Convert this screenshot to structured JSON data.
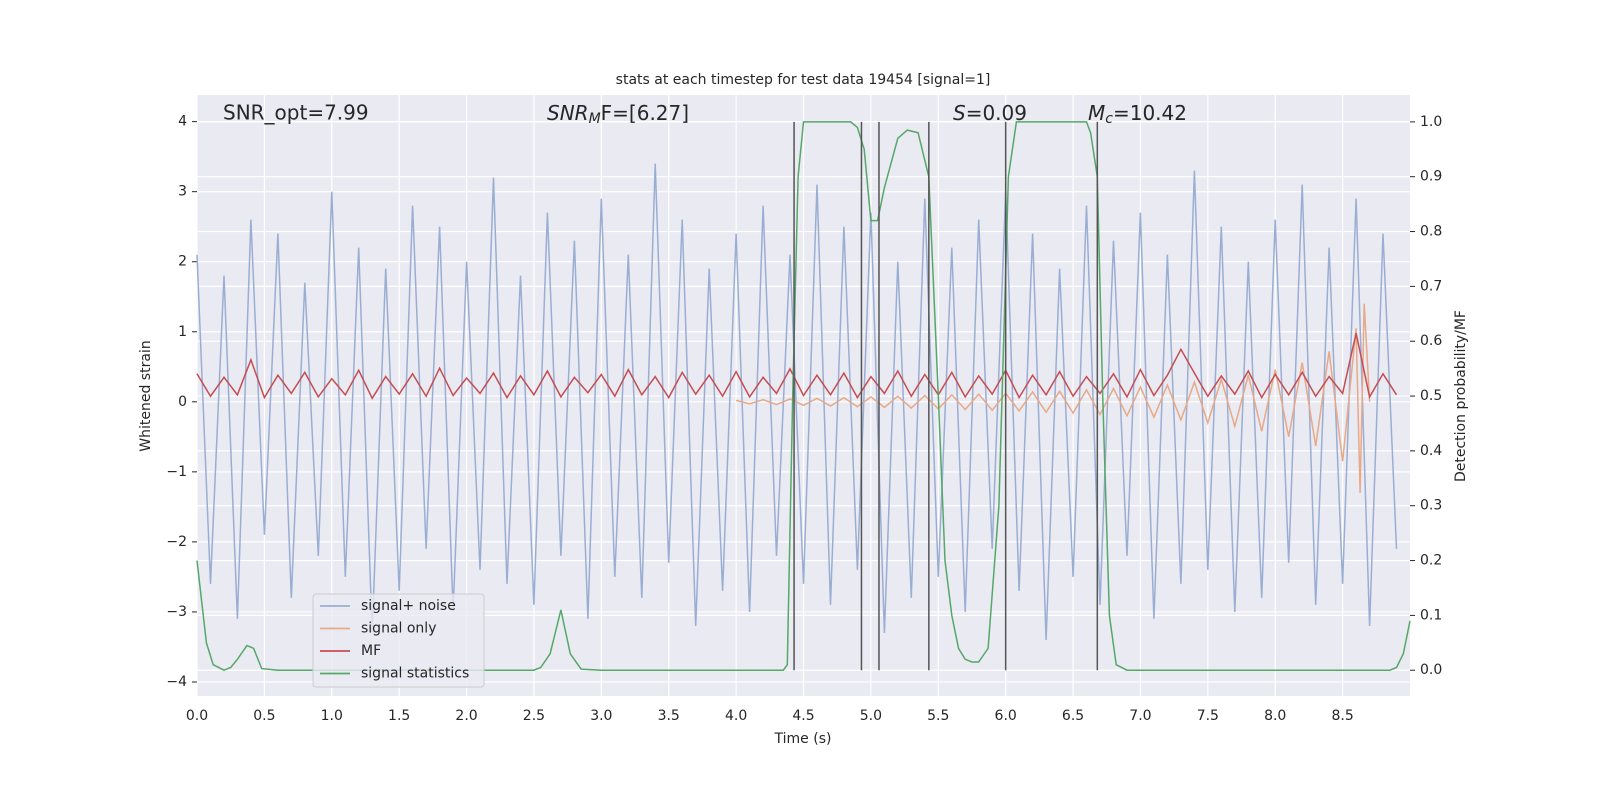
{
  "chart_data": {
    "type": "line",
    "title": "stats at each timestep for test data 19454 [signal=1]",
    "x_label": "Time (s)",
    "y_label": "Whitened strain",
    "y2_label": "Detection probability/MF",
    "xlim": [
      0,
      9.0
    ],
    "ylim": [
      -4.2,
      4.38
    ],
    "y2lim": [
      -0.047,
      1.049
    ],
    "xticks": [
      {
        "value": 0,
        "label": "0.0"
      },
      0.5,
      {
        "value": 1,
        "label": "1.0"
      },
      1.5,
      {
        "value": 2,
        "label": "2.0"
      },
      2.5,
      {
        "value": 3,
        "label": "3.0"
      },
      3.5,
      {
        "value": 4,
        "label": "4.0"
      },
      4.5,
      {
        "value": 5,
        "label": "5.0"
      },
      5.5,
      {
        "value": 6,
        "label": "6.0"
      },
      6.5,
      {
        "value": 7,
        "label": "7.0"
      },
      7.5,
      {
        "value": 8,
        "label": "8.0"
      },
      8.5
    ],
    "yticks": [
      {
        "value": -4,
        "label": "−4"
      },
      {
        "value": -3,
        "label": "−3"
      },
      {
        "value": -2,
        "label": "−2"
      },
      {
        "value": -1,
        "label": "−1"
      },
      0,
      1,
      2,
      3,
      4
    ],
    "y2ticks": [
      {
        "value": 0,
        "label": "0.0"
      },
      0.1,
      0.2,
      0.3,
      0.4,
      0.5,
      0.6,
      0.7,
      0.8,
      0.9,
      {
        "value": 1,
        "label": "1.0"
      }
    ],
    "grid": true,
    "legend_loc": "lower left",
    "annotations": [
      {
        "text": "SNR_opt=7.99"
      },
      {
        "base": "SNR",
        "sub": "M",
        "tail": "F=[6.27]"
      },
      {
        "base": "S",
        "tail": "=0.09"
      },
      {
        "base": "M",
        "sub": "c",
        "tail": "=10.42"
      }
    ],
    "series": [
      {
        "name": "signal+ noise",
        "color": "#9aaed3",
        "axis": "y",
        "x": [
          0,
          0.1,
          0.2,
          0.3,
          0.4,
          0.5,
          0.6,
          0.7,
          0.8,
          0.9,
          1,
          1.1,
          1.2,
          1.3,
          1.4,
          1.5,
          1.6,
          1.7,
          1.8,
          1.9,
          2,
          2.1,
          2.2,
          2.3,
          2.4,
          2.5,
          2.6,
          2.7,
          2.8,
          2.9,
          3,
          3.1,
          3.2,
          3.3,
          3.4,
          3.5,
          3.6,
          3.7,
          3.8,
          3.9,
          4,
          4.1,
          4.2,
          4.3,
          4.4,
          4.5,
          4.6,
          4.7,
          4.8,
          4.9,
          5,
          5.1,
          5.2,
          5.3,
          5.4,
          5.5,
          5.6,
          5.7,
          5.8,
          5.9,
          6,
          6.1,
          6.2,
          6.3,
          6.4,
          6.5,
          6.6,
          6.7,
          6.8,
          6.9,
          7,
          7.1,
          7.2,
          7.3,
          7.4,
          7.5,
          7.6,
          7.7,
          7.8,
          7.9,
          8,
          8.1,
          8.2,
          8.3,
          8.4,
          8.5,
          8.6,
          8.7,
          8.8,
          8.9
        ],
        "values": [
          2.1,
          -2.6,
          1.8,
          -3.1,
          2.6,
          -1.9,
          2.4,
          -2.8,
          1.7,
          -2.2,
          3.0,
          -2.5,
          2.2,
          -3.3,
          1.9,
          -2.7,
          2.8,
          -2.1,
          2.5,
          -3.0,
          2.0,
          -2.4,
          3.2,
          -2.6,
          1.8,
          -2.9,
          2.7,
          -2.2,
          2.3,
          -3.1,
          2.9,
          -2.5,
          2.1,
          -2.8,
          3.4,
          -2.3,
          2.6,
          -3.2,
          1.9,
          -2.7,
          2.4,
          -3.0,
          2.8,
          -2.2,
          2.1,
          -2.6,
          3.1,
          -2.9,
          2.5,
          -2.4,
          2.7,
          -3.3,
          2.0,
          -2.8,
          2.9,
          -2.5,
          2.2,
          -3.0,
          2.6,
          -2.1,
          3.0,
          -2.7,
          2.4,
          -3.4,
          1.9,
          -2.5,
          2.8,
          -2.9,
          2.3,
          -2.2,
          2.7,
          -3.1,
          2.1,
          -2.6,
          3.3,
          -2.4,
          2.5,
          -3.0,
          2.0,
          -2.8,
          2.6,
          -2.3,
          3.1,
          -2.9,
          2.2,
          -2.6,
          2.9,
          -3.2,
          2.4,
          -2.1
        ]
      },
      {
        "name": "signal only",
        "color": "#e7a987",
        "axis": "y",
        "x": [
          4.0,
          4.1,
          4.2,
          4.3,
          4.4,
          4.5,
          4.6,
          4.7,
          4.8,
          4.9,
          5.0,
          5.1,
          5.2,
          5.3,
          5.4,
          5.5,
          5.6,
          5.7,
          5.8,
          5.9,
          6.0,
          6.1,
          6.2,
          6.3,
          6.4,
          6.5,
          6.6,
          6.7,
          6.8,
          6.9,
          7.0,
          7.1,
          7.2,
          7.3,
          7.4,
          7.5,
          7.6,
          7.7,
          7.8,
          7.9,
          8.0,
          8.1,
          8.2,
          8.3,
          8.4,
          8.5,
          8.6,
          8.63,
          8.66,
          8.7
        ],
        "values": [
          0.02,
          -0.03,
          0.03,
          -0.04,
          0.04,
          -0.05,
          0.05,
          -0.06,
          0.06,
          -0.07,
          0.07,
          -0.08,
          0.08,
          -0.09,
          0.09,
          -0.1,
          0.1,
          -0.11,
          0.11,
          -0.12,
          0.12,
          -0.13,
          0.14,
          -0.15,
          0.15,
          -0.16,
          0.17,
          -0.18,
          0.19,
          -0.2,
          0.21,
          -0.22,
          0.24,
          -0.26,
          0.28,
          -0.3,
          0.32,
          -0.35,
          0.38,
          -0.42,
          0.46,
          -0.5,
          0.56,
          -0.63,
          0.72,
          -0.85,
          1.05,
          -1.3,
          1.4,
          0
        ]
      },
      {
        "name": "MF",
        "color": "#c44e52",
        "axis": "y",
        "x": [
          0,
          0.1,
          0.2,
          0.3,
          0.4,
          0.5,
          0.6,
          0.7,
          0.8,
          0.9,
          1,
          1.1,
          1.2,
          1.3,
          1.4,
          1.5,
          1.6,
          1.7,
          1.8,
          1.9,
          2,
          2.1,
          2.2,
          2.3,
          2.4,
          2.5,
          2.6,
          2.7,
          2.8,
          2.9,
          3,
          3.1,
          3.2,
          3.3,
          3.4,
          3.5,
          3.6,
          3.7,
          3.8,
          3.9,
          4,
          4.1,
          4.2,
          4.3,
          4.4,
          4.5,
          4.6,
          4.7,
          4.8,
          4.9,
          5,
          5.1,
          5.2,
          5.3,
          5.4,
          5.5,
          5.6,
          5.7,
          5.8,
          5.9,
          6,
          6.1,
          6.2,
          6.3,
          6.4,
          6.5,
          6.6,
          6.7,
          6.8,
          6.9,
          7,
          7.1,
          7.2,
          7.3,
          7.4,
          7.5,
          7.6,
          7.7,
          7.8,
          7.9,
          8,
          8.1,
          8.2,
          8.3,
          8.4,
          8.5,
          8.6,
          8.7,
          8.8,
          8.9
        ],
        "values": [
          0.4,
          0.08,
          0.35,
          0.1,
          0.6,
          0.06,
          0.38,
          0.12,
          0.42,
          0.07,
          0.33,
          0.1,
          0.45,
          0.05,
          0.36,
          0.11,
          0.4,
          0.08,
          0.48,
          0.09,
          0.34,
          0.12,
          0.41,
          0.06,
          0.37,
          0.1,
          0.44,
          0.07,
          0.35,
          0.13,
          0.39,
          0.08,
          0.46,
          0.1,
          0.36,
          0.06,
          0.42,
          0.11,
          0.38,
          0.08,
          0.43,
          0.07,
          0.35,
          0.12,
          0.47,
          0.09,
          0.38,
          0.1,
          0.41,
          0.06,
          0.36,
          0.12,
          0.44,
          0.08,
          0.39,
          0.1,
          0.42,
          0.07,
          0.37,
          0.11,
          0.45,
          0.06,
          0.38,
          0.1,
          0.43,
          0.08,
          0.36,
          0.12,
          0.4,
          0.07,
          0.46,
          0.09,
          0.38,
          0.75,
          0.41,
          0.08,
          0.37,
          0.11,
          0.44,
          0.06,
          0.39,
          0.1,
          0.42,
          0.08,
          0.36,
          0.12,
          0.98,
          0.07,
          0.4,
          0.1
        ]
      },
      {
        "name": "signal statistics",
        "color": "#55a868",
        "axis": "y2",
        "x": [
          0,
          0.07,
          0.12,
          0.2,
          0.25,
          0.3,
          0.37,
          0.42,
          0.48,
          0.6,
          2.5,
          2.55,
          2.62,
          2.7,
          2.77,
          2.85,
          3.0,
          4.35,
          4.38,
          4.42,
          4.46,
          4.5,
          4.85,
          4.9,
          4.95,
          5.0,
          5.05,
          5.1,
          5.2,
          5.27,
          5.35,
          5.43,
          5.5,
          5.55,
          5.6,
          5.65,
          5.7,
          5.75,
          5.8,
          5.87,
          5.95,
          6.02,
          6.08,
          6.6,
          6.63,
          6.68,
          6.72,
          6.77,
          6.82,
          6.9,
          8.85,
          8.9,
          8.95,
          9.0
        ],
        "values": [
          0.2,
          0.05,
          0.01,
          0.0,
          0.005,
          0.02,
          0.045,
          0.04,
          0.003,
          0.0,
          0.0,
          0.005,
          0.03,
          0.11,
          0.03,
          0.002,
          0.0,
          0.0,
          0.01,
          0.5,
          0.9,
          1.0,
          1.0,
          0.99,
          0.95,
          0.82,
          0.82,
          0.88,
          0.97,
          0.985,
          0.98,
          0.9,
          0.5,
          0.2,
          0.1,
          0.04,
          0.02,
          0.015,
          0.015,
          0.04,
          0.3,
          0.9,
          1.0,
          1.0,
          0.98,
          0.9,
          0.5,
          0.1,
          0.01,
          0.0,
          0.0,
          0.005,
          0.03,
          0.09
        ]
      }
    ],
    "vlines": {
      "axis": "y2",
      "color": "#555555",
      "ymin": 0,
      "ymax": 1,
      "x": [
        4.43,
        4.93,
        5.06,
        5.43,
        6.0,
        6.68
      ]
    }
  }
}
